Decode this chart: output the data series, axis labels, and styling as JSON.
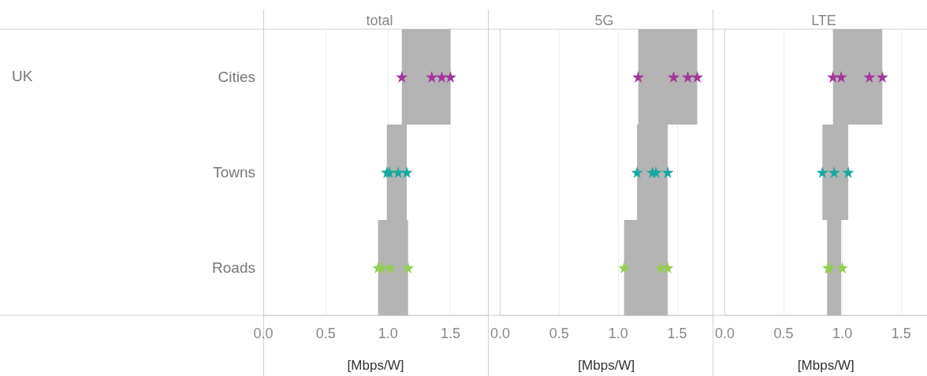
{
  "chart_data": [
    {
      "type": "bar",
      "orientation": "horizontal",
      "title": "total",
      "xlabel": "[Mbps/W]",
      "annotations": [
        "UK"
      ],
      "categories": [
        "Cities",
        "Towns",
        "Roads"
      ],
      "xlim": [
        0,
        1.8
      ],
      "xticks": [
        {
          "value": 0,
          "label": "0.0"
        },
        {
          "value": 0.5,
          "label": "0.5"
        },
        {
          "value": 1,
          "label": "1.0"
        },
        {
          "value": 1.5,
          "label": "1.5"
        }
      ],
      "grid": "x",
      "marker": "star",
      "series": [
        {
          "color": "#b4b4b4",
          "base": [
            1.11,
            0.99,
            0.92
          ],
          "values": [
            0.39,
            0.16,
            0.24
          ]
        },
        {
          "type": "scatter",
          "color": "#a3369c",
          "x": [
            "Cities",
            "Cities",
            "Cities",
            "Cities"
          ],
          "values": [
            1.11,
            1.35,
            1.43,
            1.5
          ]
        },
        {
          "type": "scatter",
          "color": "#17a89e",
          "x": [
            "Towns",
            "Towns",
            "Towns",
            "Towns"
          ],
          "values": [
            0.99,
            1.01,
            1.08,
            1.15
          ]
        },
        {
          "type": "scatter",
          "color": "#92cf4f",
          "x": [
            "Roads",
            "Roads",
            "Roads",
            "Roads"
          ],
          "values": [
            0.92,
            0.95,
            1.02,
            1.16
          ]
        }
      ]
    },
    {
      "type": "bar",
      "orientation": "horizontal",
      "title": "5G",
      "xlabel": "[Mbps/W]",
      "categories": [
        "Cities",
        "Towns",
        "Roads"
      ],
      "xlim": [
        0,
        1.8
      ],
      "xticks": [
        {
          "value": 0,
          "label": "0.0"
        },
        {
          "value": 0.5,
          "label": "0.5"
        },
        {
          "value": 1,
          "label": "1.0"
        },
        {
          "value": 1.5,
          "label": "1.5"
        }
      ],
      "grid": "x",
      "marker": "star",
      "tick_labels": "x",
      "series": [
        {
          "color": "#b4b4b4",
          "base": [
            1.17,
            1.16,
            1.05
          ],
          "values": [
            0.5,
            0.26,
            0.37
          ]
        },
        {
          "type": "scatter",
          "color": "#a3369c",
          "x": [
            "Cities",
            "Cities",
            "Cities",
            "Cities"
          ],
          "values": [
            1.17,
            1.47,
            1.59,
            1.67
          ]
        },
        {
          "type": "scatter",
          "color": "#17a89e",
          "x": [
            "Towns",
            "Towns",
            "Towns",
            "Towns"
          ],
          "values": [
            1.16,
            1.29,
            1.32,
            1.42
          ]
        },
        {
          "type": "scatter",
          "color": "#92cf4f",
          "x": [
            "Roads",
            "Roads",
            "Roads"
          ],
          "values": [
            1.05,
            1.36,
            1.42
          ]
        }
      ]
    },
    {
      "type": "bar",
      "orientation": "horizontal",
      "title": "LTE",
      "xlabel": "[Mbps/W]",
      "categories": [
        "Cities",
        "Towns",
        "Roads"
      ],
      "xlim": [
        0,
        1.72
      ],
      "xticks": [
        {
          "value": 0,
          "label": "0.0"
        },
        {
          "value": 0.5,
          "label": "0.5"
        },
        {
          "value": 1,
          "label": "1.0"
        },
        {
          "value": 1.5,
          "label": "1.5"
        }
      ],
      "grid": "x",
      "marker": "star",
      "tick_labels": "x",
      "series": [
        {
          "color": "#b4b4b4",
          "base": [
            0.92,
            0.83,
            0.87
          ],
          "values": [
            0.42,
            0.22,
            0.12
          ]
        },
        {
          "type": "scatter",
          "color": "#a3369c",
          "x": [
            "Cities",
            "Cities",
            "Cities",
            "Cities"
          ],
          "values": [
            0.92,
            0.99,
            1.23,
            1.34
          ]
        },
        {
          "type": "scatter",
          "color": "#17a89e",
          "x": [
            "Towns",
            "Towns",
            "Towns"
          ],
          "values": [
            0.83,
            0.93,
            1.05
          ]
        },
        {
          "type": "scatter",
          "color": "#92cf4f",
          "x": [
            "Roads",
            "Roads",
            "Roads"
          ],
          "values": [
            0.88,
            0.89,
            1.0
          ]
        }
      ]
    }
  ]
}
